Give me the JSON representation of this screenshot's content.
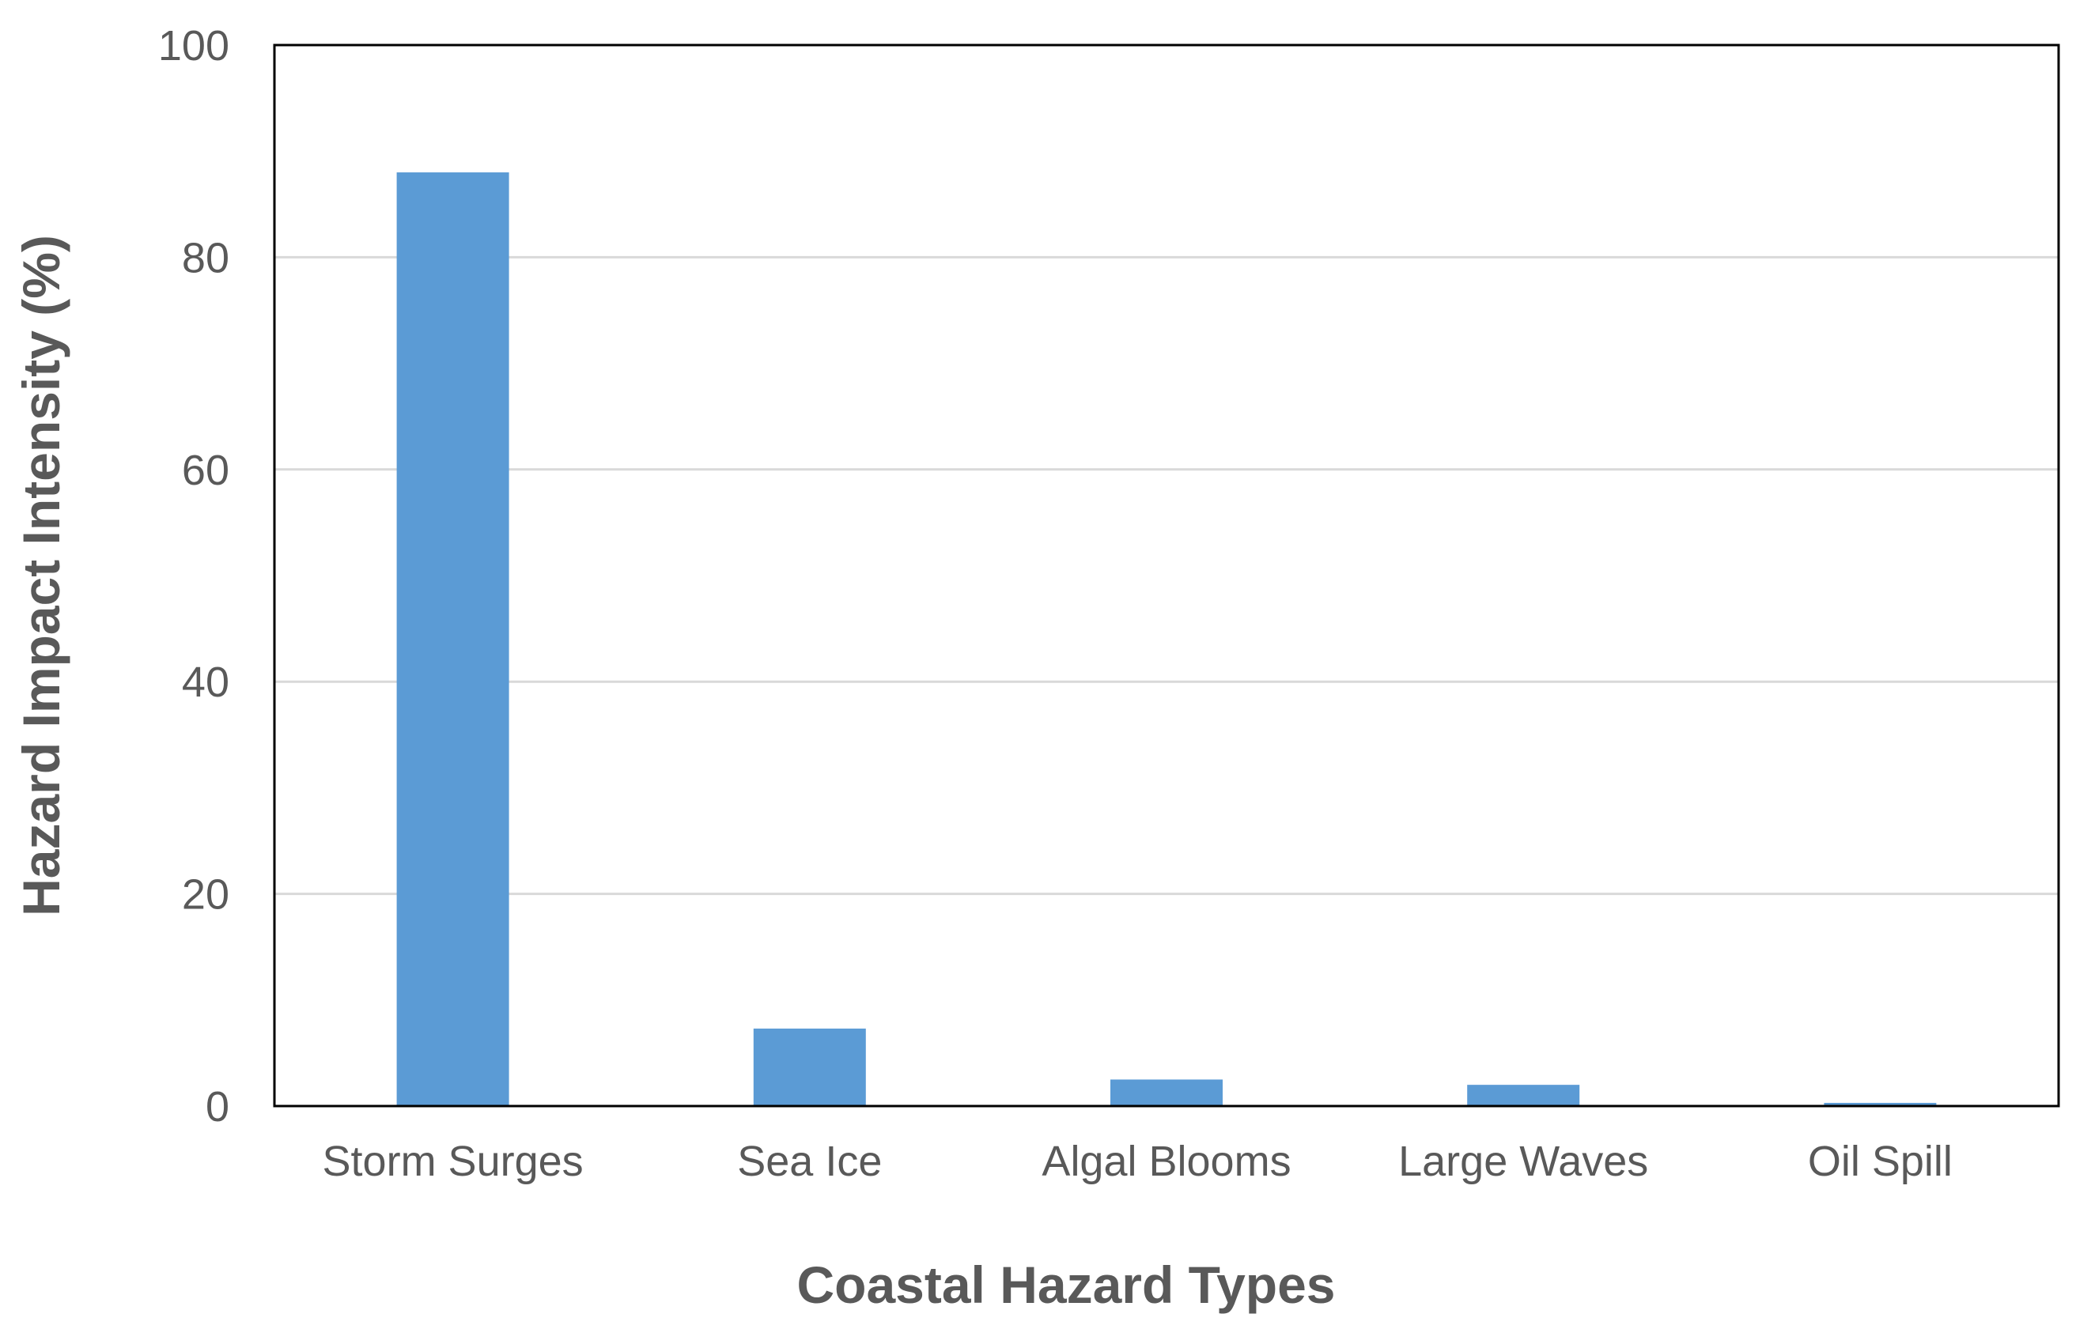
{
  "chart_data": {
    "type": "bar",
    "categories": [
      "Storm Surges",
      "Sea Ice",
      "Algal Blooms",
      "Large Waves",
      "Oil Spill"
    ],
    "values": [
      88,
      7.3,
      2.5,
      2.0,
      0.3
    ],
    "title": "",
    "xlabel": "Coastal Hazard Types",
    "ylabel": "Hazard Impact Intensity (%)",
    "ylim": [
      0,
      100
    ],
    "yticks": [
      "0",
      "20",
      "40",
      "60",
      "80",
      "100"
    ],
    "grid": true,
    "legend": "none",
    "bar_color": "#5b9bd5",
    "grid_color": "#d9d9d9",
    "text_color": "#595959"
  }
}
